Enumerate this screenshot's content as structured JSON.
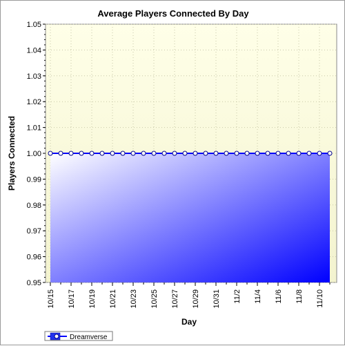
{
  "chart_data": {
    "type": "area",
    "title": "Average Players Connected By Day",
    "xlabel": "Day",
    "ylabel": "Players Connected",
    "x_tick_labels": [
      "10/15",
      "10/17",
      "10/19",
      "10/21",
      "10/23",
      "10/25",
      "10/27",
      "10/29",
      "10/31",
      "11/2",
      "11/4",
      "11/6",
      "11/8",
      "11/10"
    ],
    "x": [
      "10/15",
      "10/16",
      "10/17",
      "10/18",
      "10/19",
      "10/20",
      "10/21",
      "10/22",
      "10/23",
      "10/24",
      "10/25",
      "10/26",
      "10/27",
      "10/28",
      "10/29",
      "10/30",
      "10/31",
      "11/1",
      "11/2",
      "11/3",
      "11/4",
      "11/5",
      "11/6",
      "11/7",
      "11/8",
      "11/9",
      "11/10",
      "11/11"
    ],
    "series": [
      {
        "name": "Dreamverse",
        "color": "#0000ff",
        "values": [
          1,
          1,
          1,
          1,
          1,
          1,
          1,
          1,
          1,
          1,
          1,
          1,
          1,
          1,
          1,
          1,
          1,
          1,
          1,
          1,
          1,
          1,
          1,
          1,
          1,
          1,
          1,
          1
        ]
      }
    ],
    "ylim": [
      0.95,
      1.05
    ],
    "y_ticks": [
      "0.95",
      "0.96",
      "0.97",
      "0.98",
      "0.99",
      "1.00",
      "1.01",
      "1.02",
      "1.03",
      "1.04",
      "1.05"
    ],
    "grid": true,
    "legend_position": "bottom-left",
    "colors": {
      "plot_top": "#ffffe0",
      "plot_bottom": "#f4f4cc",
      "line": "#0000ff",
      "area_light": "#ffffff",
      "area_dark": "#0000ff"
    }
  }
}
